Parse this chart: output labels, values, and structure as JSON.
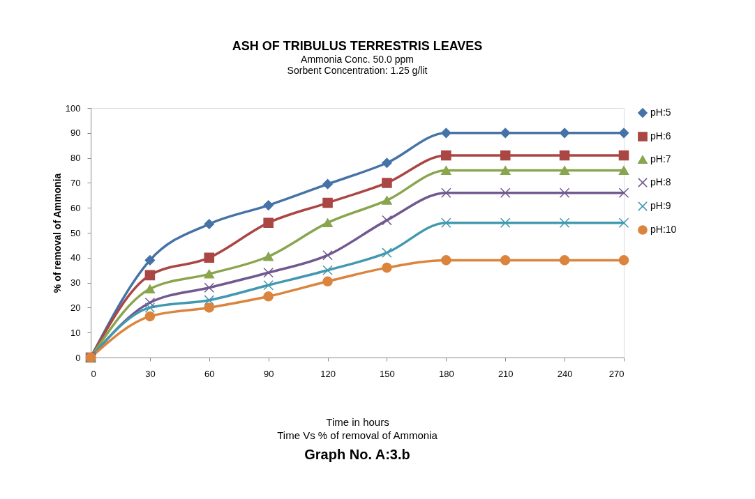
{
  "chart_data": {
    "type": "line",
    "title": "ASH OF TRIBULUS TERRESTRIS LEAVES",
    "subtitle": "Ammonia Conc. 50.0 ppm",
    "annotations": [
      "Sorbent Concentration: 1.25 g/lit",
      "Time Vs % of removal of Ammonia",
      "Graph No. A:3.b"
    ],
    "xlabel": "Time in hours",
    "ylabel": "% of removal of Ammonia",
    "x": [
      0,
      30,
      60,
      90,
      120,
      150,
      180,
      210,
      240,
      270
    ],
    "xlim": [
      0,
      270
    ],
    "xticks": [
      0,
      30,
      60,
      90,
      120,
      150,
      180,
      210,
      240,
      270
    ],
    "ylim": [
      0,
      100
    ],
    "yticks": [
      0,
      10,
      20,
      30,
      40,
      50,
      60,
      70,
      80,
      90,
      100
    ],
    "grid": false,
    "legend": "right",
    "line_style": "solid",
    "series": [
      {
        "name": "pH:5",
        "color": "#4572a7",
        "marker": "diamond",
        "values": [
          0,
          39,
          53.5,
          61,
          69.5,
          78,
          90,
          90,
          90,
          90
        ]
      },
      {
        "name": "pH:6",
        "color": "#aa4643",
        "marker": "square",
        "values": [
          0,
          33,
          40,
          54,
          62,
          70,
          81,
          81,
          81,
          81
        ]
      },
      {
        "name": "pH:7",
        "color": "#89a54e",
        "marker": "triangle",
        "values": [
          0,
          27.5,
          33.5,
          40.5,
          54,
          63,
          75,
          75,
          75,
          75
        ]
      },
      {
        "name": "pH:8",
        "color": "#71588f",
        "marker": "cross",
        "values": [
          0,
          22,
          28,
          34,
          41,
          55,
          66,
          66,
          66,
          66
        ]
      },
      {
        "name": "pH:9",
        "color": "#4198af",
        "marker": "cross",
        "values": [
          0,
          20,
          23,
          29,
          35,
          42,
          54,
          54,
          54,
          54
        ]
      },
      {
        "name": "pH:10",
        "color": "#db843d",
        "marker": "circle",
        "values": [
          0,
          16.5,
          20,
          24.5,
          30.5,
          36,
          39,
          39,
          39,
          39
        ]
      }
    ]
  }
}
